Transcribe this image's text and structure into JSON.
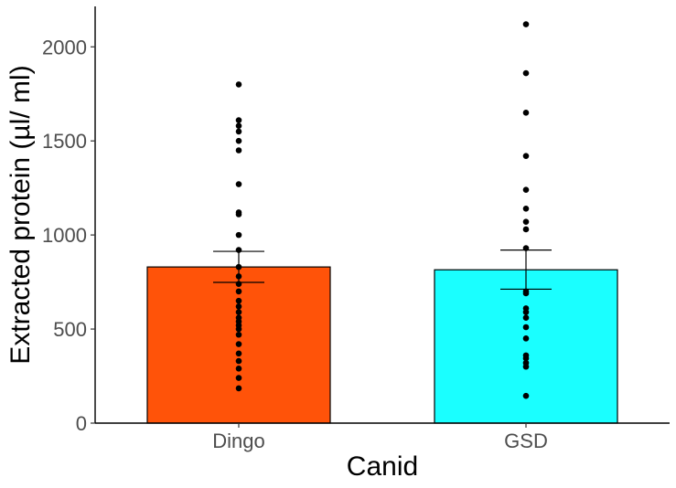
{
  "chart_data": {
    "type": "bar",
    "xlabel": "Canid",
    "ylabel": "Extracted protein (µl/ ml)",
    "categories": [
      "Dingo",
      "GSD"
    ],
    "values": [
      830,
      815
    ],
    "error_bars": [
      {
        "lower": 748,
        "upper": 913
      },
      {
        "lower": 712,
        "upper": 920
      }
    ],
    "colors": [
      "#ff5309",
      "#1affff"
    ],
    "points": [
      [
        185,
        240,
        290,
        330,
        370,
        420,
        470,
        500,
        520,
        540,
        560,
        590,
        620,
        650,
        700,
        740,
        780,
        830,
        920,
        1000,
        1110,
        1120,
        1270,
        1450,
        1500,
        1550,
        1580,
        1610,
        1800
      ],
      [
        145,
        300,
        320,
        345,
        360,
        450,
        510,
        560,
        590,
        610,
        690,
        700,
        930,
        1030,
        1070,
        1140,
        1240,
        1420,
        1650,
        1860,
        2120
      ]
    ],
    "yticks": [
      0,
      500,
      1000,
      1500,
      2000
    ],
    "ylim": [
      0,
      2215
    ],
    "grid": false,
    "legend": "none"
  }
}
